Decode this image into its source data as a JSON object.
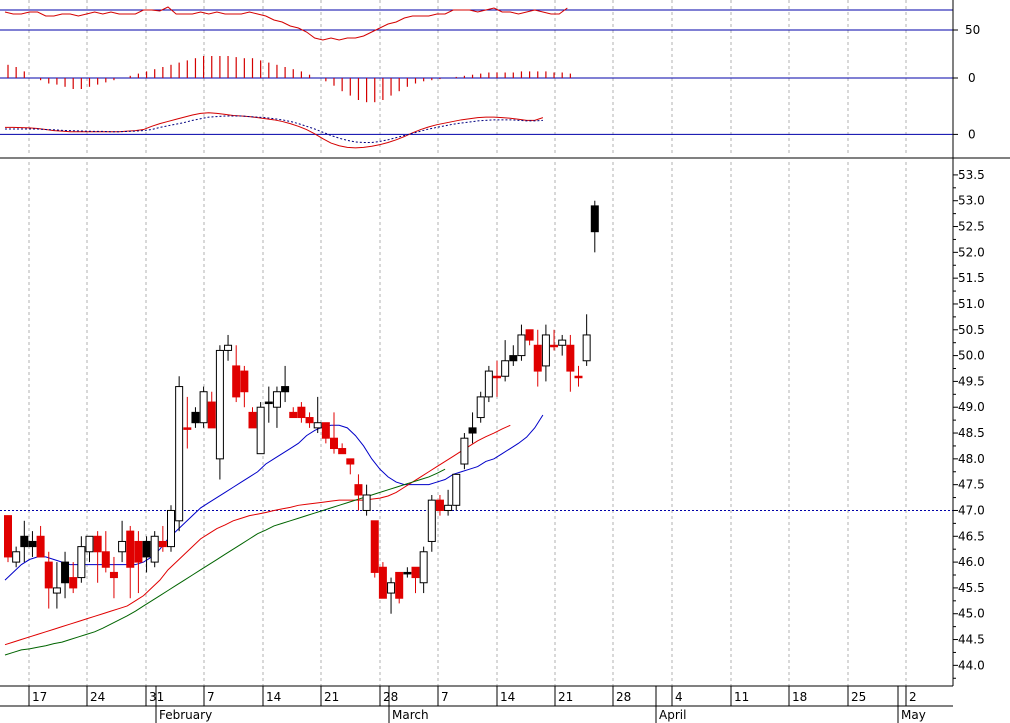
{
  "chart_data": [
    {
      "panel": "rsi",
      "type": "line",
      "y_tick_labels": [
        "50"
      ],
      "series": [
        {
          "color": "#d40000",
          "values": [
            68,
            66,
            66,
            68,
            68,
            64,
            64,
            66,
            66,
            64,
            66,
            68,
            66,
            68,
            66,
            66,
            66,
            70,
            70,
            69,
            73,
            66,
            66,
            66,
            68,
            66,
            68,
            66,
            66,
            66,
            68,
            66,
            64,
            60,
            58,
            54,
            52,
            48,
            42,
            40,
            42,
            40,
            42,
            42,
            44,
            48,
            52,
            56,
            58,
            62,
            64,
            64,
            64,
            66,
            66,
            70,
            70,
            70,
            68,
            70,
            72,
            68,
            68,
            66,
            68,
            70,
            68,
            66,
            66,
            72
          ]
        }
      ],
      "horizontal_lines": [
        70,
        50
      ],
      "ylim": [
        30,
        80
      ]
    },
    {
      "panel": "macd_histogram",
      "type": "bar",
      "y_tick_labels": [
        "0"
      ],
      "color": "#d40000",
      "values": [
        0.12,
        0.1,
        0.06,
        0,
        -0.02,
        -0.05,
        -0.06,
        -0.08,
        -0.1,
        -0.1,
        -0.08,
        -0.06,
        -0.04,
        -0.02,
        0,
        0.02,
        0.04,
        0.06,
        0.08,
        0.1,
        0.12,
        0.14,
        0.16,
        0.18,
        0.2,
        0.2,
        0.2,
        0.2,
        0.19,
        0.18,
        0.18,
        0.16,
        0.14,
        0.12,
        0.1,
        0.08,
        0.06,
        0.03,
        0,
        -0.03,
        -0.07,
        -0.12,
        -0.16,
        -0.2,
        -0.22,
        -0.22,
        -0.2,
        -0.16,
        -0.12,
        -0.08,
        -0.05,
        -0.03,
        -0.02,
        -0.01,
        0,
        0.01,
        0.02,
        0.03,
        0.04,
        0.05,
        0.05,
        0.05,
        0.05,
        0.06,
        0.06,
        0.06,
        0.06,
        0.05,
        0.05,
        0.04
      ]
    },
    {
      "panel": "macd",
      "type": "line",
      "y_tick_labels": [
        "0"
      ],
      "series": [
        {
          "color": "#d40000",
          "values": [
            0.26,
            0.26,
            0.25,
            0.24,
            0.22,
            0.18,
            0.14,
            0.12,
            0.1,
            0.1,
            0.1,
            0.1,
            0.1,
            0.1,
            0.1,
            0.12,
            0.14,
            0.18,
            0.3,
            0.4,
            0.48,
            0.56,
            0.64,
            0.72,
            0.78,
            0.8,
            0.78,
            0.74,
            0.7,
            0.68,
            0.66,
            0.62,
            0.58,
            0.54,
            0.48,
            0.4,
            0.3,
            0.18,
            0.02,
            -0.16,
            -0.32,
            -0.42,
            -0.48,
            -0.5,
            -0.48,
            -0.44,
            -0.38,
            -0.3,
            -0.2,
            -0.08,
            0.06,
            0.18,
            0.28,
            0.36,
            0.42,
            0.48,
            0.54,
            0.58,
            0.62,
            0.64,
            0.64,
            0.62,
            0.6,
            0.56,
            0.52,
            0.52,
            0.62
          ]
        },
        {
          "color": "#000080",
          "dashed": true,
          "values": [
            0.2,
            0.2,
            0.2,
            0.2,
            0.2,
            0.18,
            0.17,
            0.15,
            0.14,
            0.13,
            0.12,
            0.11,
            0.11,
            0.1,
            0.1,
            0.11,
            0.12,
            0.14,
            0.18,
            0.26,
            0.32,
            0.38,
            0.44,
            0.52,
            0.58,
            0.64,
            0.66,
            0.68,
            0.68,
            0.68,
            0.66,
            0.64,
            0.62,
            0.58,
            0.54,
            0.48,
            0.4,
            0.3,
            0.2,
            0.08,
            -0.04,
            -0.14,
            -0.22,
            -0.28,
            -0.3,
            -0.3,
            -0.26,
            -0.2,
            -0.12,
            -0.04,
            0.04,
            0.12,
            0.2,
            0.26,
            0.32,
            0.38,
            0.42,
            0.46,
            0.5,
            0.52,
            0.54,
            0.54,
            0.54,
            0.52,
            0.5,
            0.5,
            0.52
          ]
        }
      ],
      "horizontal_lines": [
        0
      ],
      "ylim": [
        -0.8,
        1.2
      ]
    },
    {
      "panel": "price",
      "type": "candlestick",
      "y_tick_labels": [
        "53.5",
        "53.0",
        "52.5",
        "52.0",
        "51.5",
        "51.0",
        "50.5",
        "50.0",
        "49.5",
        "49.0",
        "48.5",
        "48.0",
        "47.5",
        "47.0",
        "46.5",
        "46.0",
        "45.5",
        "45.0",
        "44.5",
        "44.0"
      ],
      "ylim": [
        43.6,
        53.75
      ],
      "x_day_labels": [
        "17",
        "24",
        "31",
        "7",
        "14",
        "21",
        "28",
        "7",
        "14",
        "21",
        "28",
        "4",
        "11",
        "18",
        "25",
        "2"
      ],
      "x_month_labels": [
        "February",
        "March",
        "April",
        "May"
      ],
      "reference_line": 47.0,
      "candles": [
        {
          "o": 46.9,
          "h": 46.9,
          "l": 46.0,
          "c": 46.1,
          "k": "r"
        },
        {
          "o": 46.0,
          "h": 46.3,
          "l": 45.9,
          "c": 46.2,
          "k": "w"
        },
        {
          "o": 46.3,
          "h": 46.8,
          "l": 46.0,
          "c": 46.5,
          "k": "b"
        },
        {
          "o": 46.4,
          "h": 46.6,
          "l": 46.1,
          "c": 46.3,
          "k": "b"
        },
        {
          "o": 46.5,
          "h": 46.7,
          "l": 46.1,
          "c": 46.1,
          "k": "r"
        },
        {
          "o": 46.0,
          "h": 46.2,
          "l": 45.1,
          "c": 45.5,
          "k": "r"
        },
        {
          "o": 45.4,
          "h": 46.0,
          "l": 45.1,
          "c": 45.5,
          "k": "w"
        },
        {
          "o": 46.0,
          "h": 46.2,
          "l": 45.3,
          "c": 45.6,
          "k": "b"
        },
        {
          "o": 45.7,
          "h": 46.0,
          "l": 45.4,
          "c": 45.5,
          "k": "r"
        },
        {
          "o": 45.7,
          "h": 46.5,
          "l": 45.6,
          "c": 46.3,
          "k": "w"
        },
        {
          "o": 46.2,
          "h": 46.5,
          "l": 46.0,
          "c": 46.5,
          "k": "w"
        },
        {
          "o": 46.5,
          "h": 46.6,
          "l": 45.6,
          "c": 46.2,
          "k": "r"
        },
        {
          "o": 46.2,
          "h": 46.6,
          "l": 45.8,
          "c": 45.9,
          "k": "r"
        },
        {
          "o": 45.8,
          "h": 46.1,
          "l": 45.3,
          "c": 45.7,
          "k": "r"
        },
        {
          "o": 46.2,
          "h": 46.8,
          "l": 46.0,
          "c": 46.4,
          "k": "w"
        },
        {
          "o": 46.6,
          "h": 46.7,
          "l": 45.3,
          "c": 45.9,
          "k": "r"
        },
        {
          "o": 46.4,
          "h": 46.6,
          "l": 45.4,
          "c": 46.0,
          "k": "r"
        },
        {
          "o": 46.1,
          "h": 46.5,
          "l": 45.8,
          "c": 46.4,
          "k": "b"
        },
        {
          "o": 46.0,
          "h": 46.6,
          "l": 45.9,
          "c": 46.5,
          "k": "w"
        },
        {
          "o": 46.4,
          "h": 46.7,
          "l": 46.2,
          "c": 46.3,
          "k": "r"
        },
        {
          "o": 46.3,
          "h": 47.1,
          "l": 46.2,
          "c": 47.0,
          "k": "w"
        },
        {
          "o": 46.8,
          "h": 49.6,
          "l": 46.6,
          "c": 49.4,
          "k": "w"
        },
        {
          "o": 48.6,
          "h": 49.2,
          "l": 48.2,
          "c": 48.6,
          "k": "r"
        },
        {
          "o": 48.7,
          "h": 49.0,
          "l": 48.6,
          "c": 48.9,
          "k": "b"
        },
        {
          "o": 48.7,
          "h": 49.4,
          "l": 48.6,
          "c": 49.3,
          "k": "w"
        },
        {
          "o": 49.1,
          "h": 49.3,
          "l": 48.6,
          "c": 48.6,
          "k": "r"
        },
        {
          "o": 48.0,
          "h": 50.2,
          "l": 47.6,
          "c": 50.1,
          "k": "w"
        },
        {
          "o": 50.1,
          "h": 50.4,
          "l": 49.9,
          "c": 50.2,
          "k": "w"
        },
        {
          "o": 49.8,
          "h": 50.2,
          "l": 49.1,
          "c": 49.2,
          "k": "r"
        },
        {
          "o": 49.7,
          "h": 49.8,
          "l": 49.0,
          "c": 49.3,
          "k": "r"
        },
        {
          "o": 48.9,
          "h": 49.0,
          "l": 48.6,
          "c": 48.6,
          "k": "r"
        },
        {
          "o": 48.1,
          "h": 49.1,
          "l": 48.1,
          "c": 49.0,
          "k": "w"
        },
        {
          "o": 49.1,
          "h": 49.4,
          "l": 48.7,
          "c": 49.1,
          "k": "b"
        },
        {
          "o": 49.0,
          "h": 49.4,
          "l": 48.6,
          "c": 49.3,
          "k": "w"
        },
        {
          "o": 49.3,
          "h": 49.8,
          "l": 49.1,
          "c": 49.4,
          "k": "b"
        },
        {
          "o": 48.9,
          "h": 49.0,
          "l": 48.8,
          "c": 48.8,
          "k": "r"
        },
        {
          "o": 49.0,
          "h": 49.1,
          "l": 48.7,
          "c": 48.8,
          "k": "r"
        },
        {
          "o": 48.8,
          "h": 48.9,
          "l": 48.6,
          "c": 48.7,
          "k": "r"
        },
        {
          "o": 48.6,
          "h": 49.2,
          "l": 48.5,
          "c": 48.7,
          "k": "w"
        },
        {
          "o": 48.7,
          "h": 48.7,
          "l": 48.3,
          "c": 48.4,
          "k": "r"
        },
        {
          "o": 48.4,
          "h": 48.9,
          "l": 48.1,
          "c": 48.2,
          "k": "r"
        },
        {
          "o": 48.2,
          "h": 48.3,
          "l": 48.1,
          "c": 48.1,
          "k": "r"
        },
        {
          "o": 48.0,
          "h": 48.0,
          "l": 47.7,
          "c": 47.9,
          "k": "r"
        },
        {
          "o": 47.5,
          "h": 47.7,
          "l": 47.0,
          "c": 47.3,
          "k": "r"
        },
        {
          "o": 47.0,
          "h": 47.5,
          "l": 46.9,
          "c": 47.3,
          "k": "w"
        },
        {
          "o": 46.8,
          "h": 46.8,
          "l": 45.7,
          "c": 45.8,
          "k": "r"
        },
        {
          "o": 45.9,
          "h": 46.0,
          "l": 45.3,
          "c": 45.3,
          "k": "r"
        },
        {
          "o": 45.4,
          "h": 45.7,
          "l": 45.0,
          "c": 45.6,
          "k": "w"
        },
        {
          "o": 45.8,
          "h": 45.8,
          "l": 45.2,
          "c": 45.3,
          "k": "r"
        },
        {
          "o": 45.8,
          "h": 45.9,
          "l": 45.7,
          "c": 45.8,
          "k": "b"
        },
        {
          "o": 45.9,
          "h": 45.9,
          "l": 45.4,
          "c": 45.7,
          "k": "r"
        },
        {
          "o": 45.6,
          "h": 46.3,
          "l": 45.4,
          "c": 46.2,
          "k": "w"
        },
        {
          "o": 46.4,
          "h": 47.3,
          "l": 46.2,
          "c": 47.2,
          "k": "w"
        },
        {
          "o": 47.2,
          "h": 47.3,
          "l": 46.9,
          "c": 47.0,
          "k": "r"
        },
        {
          "o": 47.0,
          "h": 47.4,
          "l": 46.9,
          "c": 47.1,
          "k": "w"
        },
        {
          "o": 47.1,
          "h": 47.7,
          "l": 47.0,
          "c": 47.7,
          "k": "w"
        },
        {
          "o": 47.9,
          "h": 48.5,
          "l": 47.8,
          "c": 48.4,
          "k": "w"
        },
        {
          "o": 48.5,
          "h": 48.9,
          "l": 48.3,
          "c": 48.6,
          "k": "b"
        },
        {
          "o": 48.8,
          "h": 49.3,
          "l": 48.7,
          "c": 49.2,
          "k": "w"
        },
        {
          "o": 49.2,
          "h": 49.8,
          "l": 49.1,
          "c": 49.7,
          "k": "w"
        },
        {
          "o": 49.6,
          "h": 49.9,
          "l": 49.2,
          "c": 49.6,
          "k": "r"
        },
        {
          "o": 49.6,
          "h": 50.3,
          "l": 49.5,
          "c": 49.9,
          "k": "w"
        },
        {
          "o": 50.0,
          "h": 50.2,
          "l": 49.8,
          "c": 49.9,
          "k": "b"
        },
        {
          "o": 50.0,
          "h": 50.6,
          "l": 49.9,
          "c": 50.4,
          "k": "w"
        },
        {
          "o": 50.5,
          "h": 50.5,
          "l": 50.2,
          "c": 50.3,
          "k": "r"
        },
        {
          "o": 50.2,
          "h": 50.5,
          "l": 49.4,
          "c": 49.7,
          "k": "r"
        },
        {
          "o": 49.8,
          "h": 50.6,
          "l": 49.5,
          "c": 50.4,
          "k": "w"
        },
        {
          "o": 50.2,
          "h": 50.5,
          "l": 50.1,
          "c": 50.2,
          "k": "r"
        },
        {
          "o": 50.2,
          "h": 50.4,
          "l": 50.0,
          "c": 50.3,
          "k": "w"
        },
        {
          "o": 50.2,
          "h": 50.4,
          "l": 49.3,
          "c": 49.7,
          "k": "r"
        },
        {
          "o": 49.6,
          "h": 49.8,
          "l": 49.4,
          "c": 49.6,
          "k": "r"
        },
        {
          "o": 49.9,
          "h": 50.8,
          "l": 49.8,
          "c": 50.4,
          "k": "w"
        },
        {
          "o": 52.9,
          "h": 53.0,
          "l": 52.0,
          "c": 52.4,
          "k": "b"
        }
      ],
      "moving_averages": [
        {
          "name_hidden": true,
          "color": "#0000c8",
          "values": [
            45.65,
            45.8,
            45.95,
            46.05,
            46.1,
            46.1,
            46.05,
            46.0,
            45.95,
            45.95,
            45.95,
            45.95,
            45.95,
            45.95,
            45.95,
            45.95,
            45.95,
            46.0,
            46.1,
            46.25,
            46.45,
            46.6,
            46.75,
            46.9,
            47.05,
            47.15,
            47.25,
            47.35,
            47.45,
            47.55,
            47.65,
            47.75,
            47.9,
            48.0,
            48.1,
            48.2,
            48.3,
            48.45,
            48.55,
            48.62,
            48.65,
            48.65,
            48.6,
            48.45,
            48.25,
            48.0,
            47.8,
            47.65,
            47.55,
            47.5,
            47.5,
            47.5,
            47.5,
            47.55,
            47.6,
            47.7,
            47.75,
            47.8,
            47.85,
            47.95,
            48.0,
            48.1,
            48.2,
            48.3,
            48.42,
            48.6,
            48.85
          ]
        },
        {
          "name_hidden": true,
          "color": "#e00000",
          "values": [
            44.4,
            44.45,
            44.5,
            44.55,
            44.6,
            44.65,
            44.7,
            44.75,
            44.8,
            44.85,
            44.9,
            44.95,
            45.0,
            45.05,
            45.1,
            45.15,
            45.25,
            45.35,
            45.5,
            45.65,
            45.85,
            46.0,
            46.15,
            46.3,
            46.45,
            46.55,
            46.65,
            46.72,
            46.8,
            46.85,
            46.9,
            46.93,
            46.96,
            47.0,
            47.03,
            47.06,
            47.1,
            47.12,
            47.14,
            47.16,
            47.18,
            47.2,
            47.2,
            47.2,
            47.2,
            47.22,
            47.24,
            47.28,
            47.35,
            47.45,
            47.55,
            47.65,
            47.75,
            47.85,
            47.95,
            48.05,
            48.15,
            48.25,
            48.35,
            48.43,
            48.5,
            48.58,
            48.65
          ]
        },
        {
          "name_hidden": true,
          "color": "#006400",
          "values": [
            44.2,
            44.25,
            44.3,
            44.32,
            44.35,
            44.38,
            44.42,
            44.45,
            44.5,
            44.55,
            44.6,
            44.65,
            44.72,
            44.8,
            44.88,
            44.96,
            45.05,
            45.15,
            45.25,
            45.35,
            45.45,
            45.55,
            45.65,
            45.75,
            45.85,
            45.95,
            46.05,
            46.15,
            46.25,
            46.35,
            46.45,
            46.55,
            46.62,
            46.7,
            46.75,
            46.8,
            46.85,
            46.9,
            46.95,
            47.0,
            47.05,
            47.1,
            47.15,
            47.2,
            47.25,
            47.3,
            47.35,
            47.4,
            47.45,
            47.5,
            47.55,
            47.6,
            47.65,
            47.72,
            47.8
          ]
        }
      ]
    }
  ]
}
